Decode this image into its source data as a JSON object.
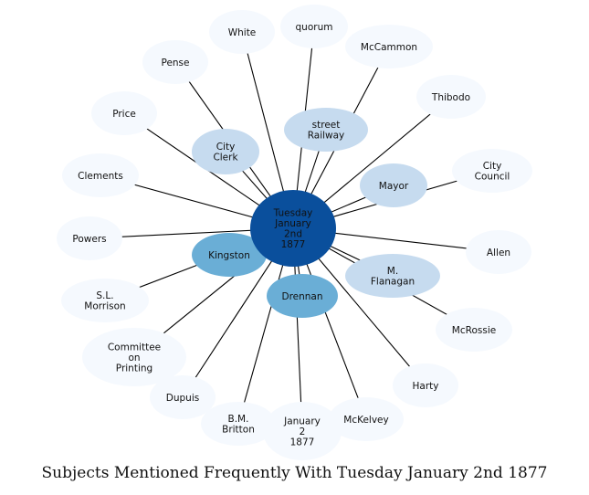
{
  "caption": "Subjects Mentioned Frequently With Tuesday January 2nd 1877",
  "colors": {
    "hub": "#0a4f9c",
    "strong": "#6aaed6",
    "medium": "#c6dbef",
    "weak": "#f5f9fe",
    "edge": "#000000"
  },
  "hub": {
    "id": "hub",
    "lines": [
      "Tuesday",
      "January",
      "2nd",
      "1877"
    ]
  },
  "nodes": [
    {
      "id": "white",
      "lines": [
        "White"
      ],
      "strength": "weak"
    },
    {
      "id": "quorum",
      "lines": [
        "quorum"
      ],
      "strength": "weak"
    },
    {
      "id": "mccammon",
      "lines": [
        "McCammon"
      ],
      "strength": "weak"
    },
    {
      "id": "pense",
      "lines": [
        "Pense"
      ],
      "strength": "weak"
    },
    {
      "id": "thibodo",
      "lines": [
        "Thibodo"
      ],
      "strength": "weak"
    },
    {
      "id": "price",
      "lines": [
        "Price"
      ],
      "strength": "weak"
    },
    {
      "id": "street-railway",
      "lines": [
        "street",
        "Railway"
      ],
      "strength": "medium"
    },
    {
      "id": "city-clerk",
      "lines": [
        "City",
        "Clerk"
      ],
      "strength": "medium"
    },
    {
      "id": "city-council",
      "lines": [
        "City",
        "Council"
      ],
      "strength": "weak"
    },
    {
      "id": "clements",
      "lines": [
        "Clements"
      ],
      "strength": "weak"
    },
    {
      "id": "mayor",
      "lines": [
        "Mayor"
      ],
      "strength": "medium"
    },
    {
      "id": "powers",
      "lines": [
        "Powers"
      ],
      "strength": "weak"
    },
    {
      "id": "allen",
      "lines": [
        "Allen"
      ],
      "strength": "weak"
    },
    {
      "id": "kingston",
      "lines": [
        "Kingston"
      ],
      "strength": "strong"
    },
    {
      "id": "m-flanagan",
      "lines": [
        "M.",
        "Flanagan"
      ],
      "strength": "medium"
    },
    {
      "id": "sl-morrison",
      "lines": [
        "S.L.",
        "Morrison"
      ],
      "strength": "weak"
    },
    {
      "id": "drennan",
      "lines": [
        "Drennan"
      ],
      "strength": "strong"
    },
    {
      "id": "mcrossie",
      "lines": [
        "McRossie"
      ],
      "strength": "weak"
    },
    {
      "id": "committee-on-printing",
      "lines": [
        "Committee",
        "on",
        "Printing"
      ],
      "strength": "weak"
    },
    {
      "id": "harty",
      "lines": [
        "Harty"
      ],
      "strength": "weak"
    },
    {
      "id": "dupuis",
      "lines": [
        "Dupuis"
      ],
      "strength": "weak"
    },
    {
      "id": "bm-britton",
      "lines": [
        "B.M.",
        "Britton"
      ],
      "strength": "weak"
    },
    {
      "id": "mckelvey",
      "lines": [
        "McKelvey"
      ],
      "strength": "weak"
    },
    {
      "id": "january-2-1877",
      "lines": [
        "January",
        "2",
        "1877"
      ],
      "strength": "weak"
    }
  ]
}
